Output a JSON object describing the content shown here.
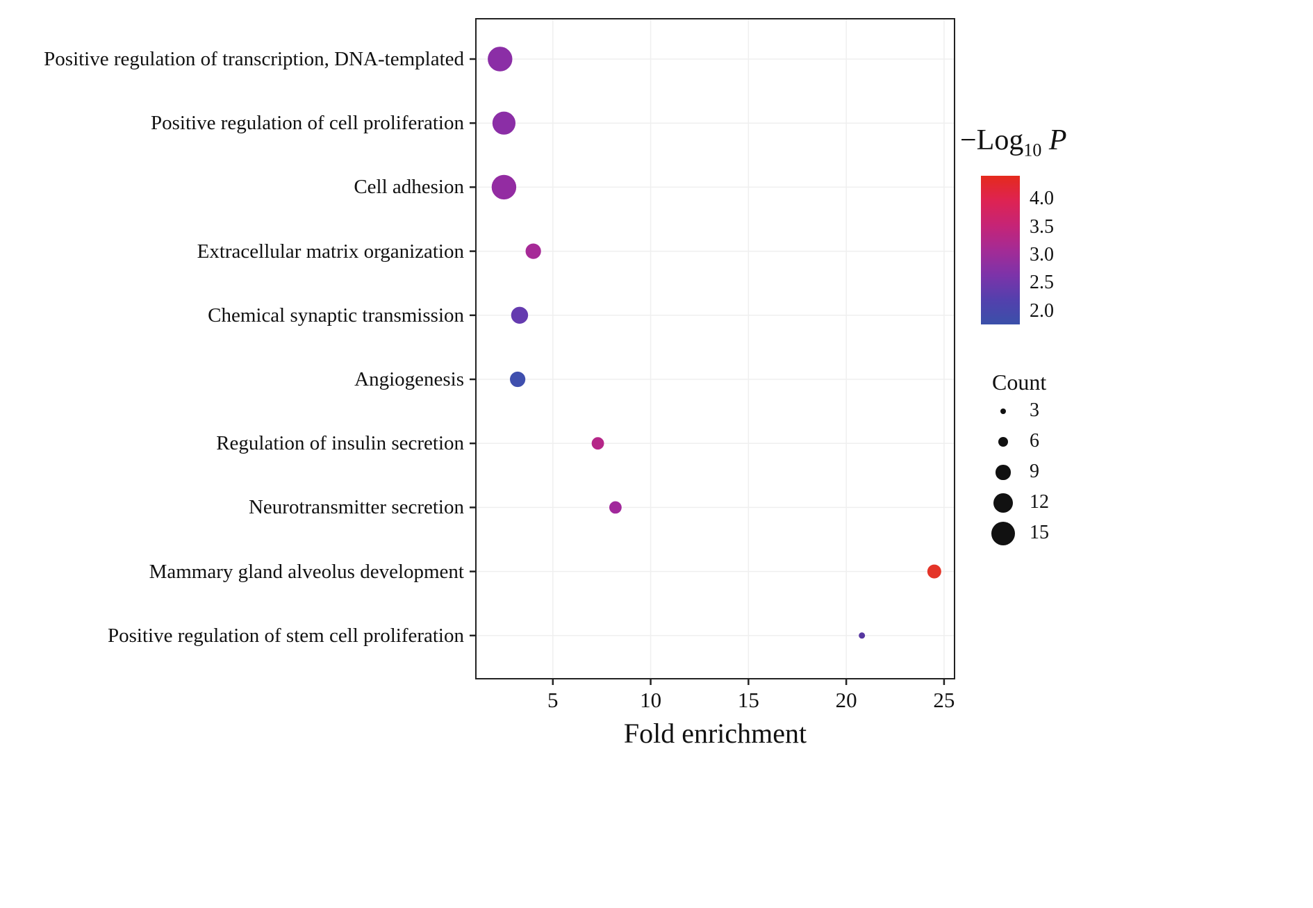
{
  "figure": {
    "background": "#ffffff",
    "panel_border_color": "#222222",
    "grid_color": "#efefef"
  },
  "chart_data": {
    "type": "scatter",
    "title": "",
    "xlabel": "Fold enrichment",
    "ylabel": "",
    "xlim": [
      1.1,
      25.5
    ],
    "x_ticks": [
      5,
      10,
      15,
      20,
      25
    ],
    "grid": true,
    "categories": [
      "Positive regulation of transcription, DNA-templated",
      "Positive regulation of cell proliferation",
      "Cell adhesion",
      "Extracellular matrix organization",
      "Chemical synaptic transmission",
      "Angiogenesis",
      "Regulation of insulin secretion",
      "Neurotransmitter secretion",
      "Mammary gland alveolus development",
      "Positive regulation of stem cell proliferation"
    ],
    "points": [
      {
        "category": "Positive regulation of transcription, DNA-templated",
        "fold_enrichment": 2.3,
        "count": 15,
        "neg_log10_p": 2.7,
        "color": "#8b2ea6"
      },
      {
        "category": "Positive regulation of cell proliferation",
        "fold_enrichment": 2.5,
        "count": 14,
        "neg_log10_p": 2.7,
        "color": "#8b2ea6"
      },
      {
        "category": "Cell adhesion",
        "fold_enrichment": 2.5,
        "count": 15,
        "neg_log10_p": 2.8,
        "color": "#932ca2"
      },
      {
        "category": "Extracellular matrix organization",
        "fold_enrichment": 4.0,
        "count": 9,
        "neg_log10_p": 2.9,
        "color": "#a62a97"
      },
      {
        "category": "Chemical synaptic transmission",
        "fold_enrichment": 3.3,
        "count": 10,
        "neg_log10_p": 2.4,
        "color": "#653baf"
      },
      {
        "category": "Angiogenesis",
        "fold_enrichment": 3.2,
        "count": 9,
        "neg_log10_p": 2.0,
        "color": "#3f4fae"
      },
      {
        "category": "Regulation of insulin secretion",
        "fold_enrichment": 7.3,
        "count": 7,
        "neg_log10_p": 3.0,
        "color": "#b52688"
      },
      {
        "category": "Neurotransmitter secretion",
        "fold_enrichment": 8.2,
        "count": 7,
        "neg_log10_p": 2.9,
        "color": "#a1289b"
      },
      {
        "category": "Mammary gland alveolus development",
        "fold_enrichment": 24.5,
        "count": 8,
        "neg_log10_p": 4.0,
        "color": "#e43428"
      },
      {
        "category": "Positive regulation of stem cell proliferation",
        "fold_enrichment": 20.8,
        "count": 3,
        "neg_log10_p": 2.4,
        "color": "#5636a0"
      }
    ],
    "color_legend": {
      "title_prefix": "−Log",
      "title_sub": "10",
      "title_italic": "P",
      "domain": [
        4.4,
        1.75
      ],
      "ticks": [
        "4.0",
        "3.5",
        "3.0",
        "2.5",
        "2.0"
      ],
      "tick_values": [
        4.0,
        3.5,
        3.0,
        2.5,
        2.0
      ],
      "gradient_stops": [
        "#e52a1c",
        "#de2352",
        "#c62476",
        "#a42b95",
        "#7d33a9",
        "#5340ad",
        "#3a50a9"
      ]
    },
    "size_legend": {
      "title": "Count",
      "items": [
        "3",
        "6",
        "9",
        "12",
        "15"
      ],
      "item_values": [
        3,
        6,
        9,
        12,
        15
      ]
    }
  }
}
